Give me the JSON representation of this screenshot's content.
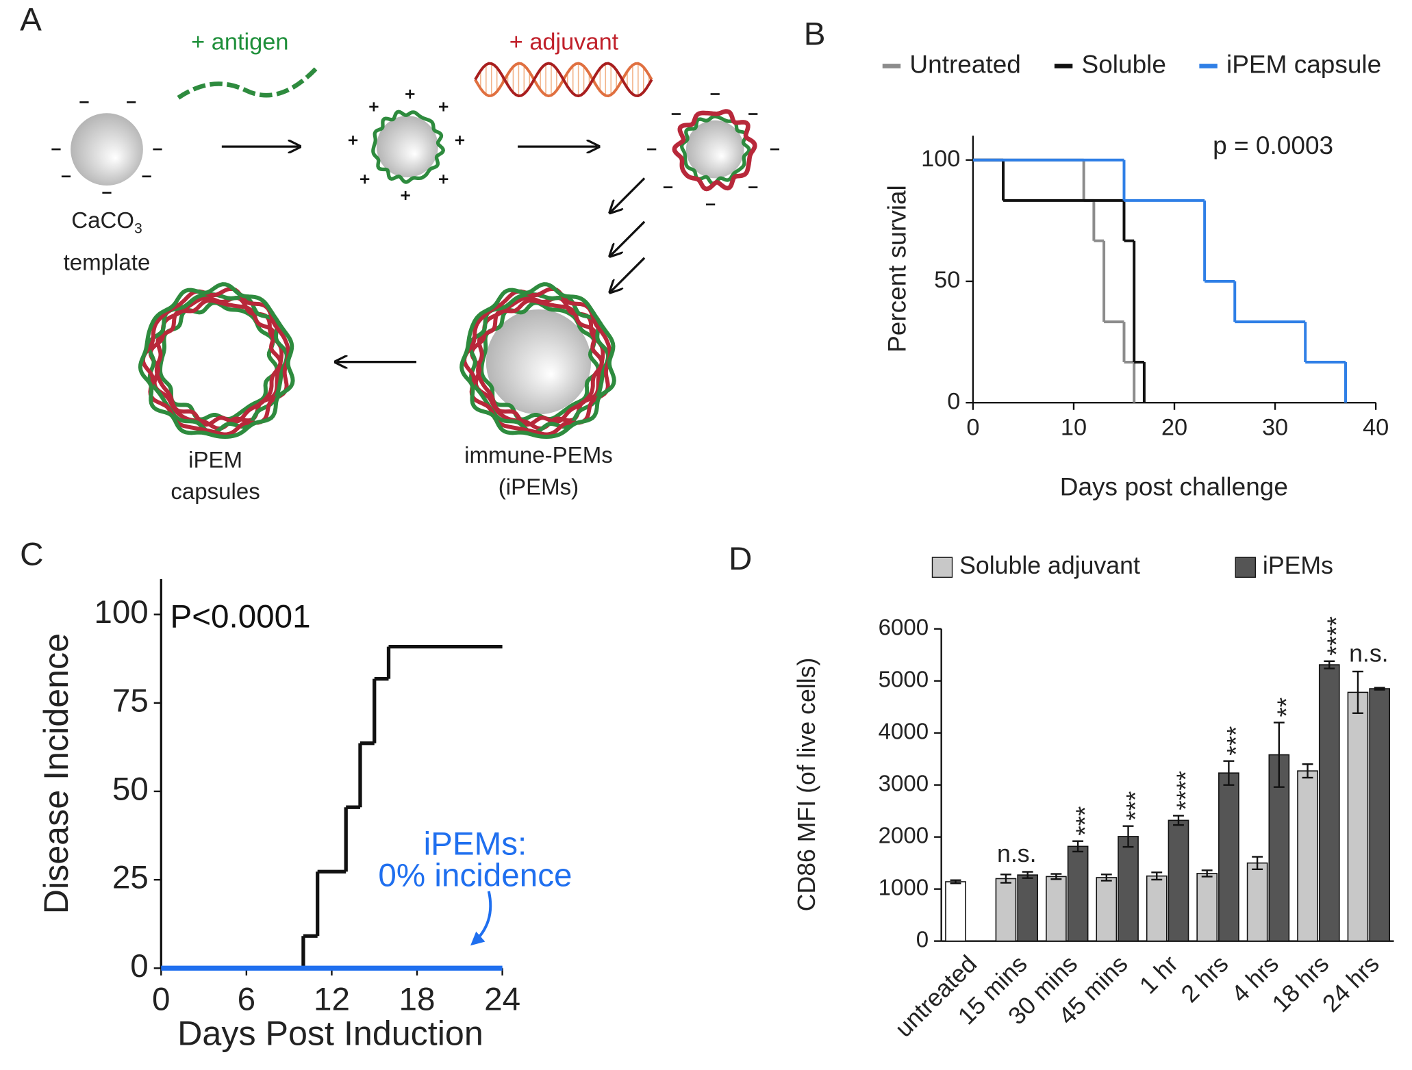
{
  "panel_labels": [
    "A",
    "B",
    "C",
    "D"
  ],
  "diagram": {
    "antigen_label": "+ antigen",
    "adjuvant_label": "+ adjuvant",
    "template_label": [
      "CaCO",
      "3",
      "template"
    ],
    "capsules_label": [
      "iPEM",
      "capsules"
    ],
    "ipems_label": [
      "immune-PEMs",
      "(iPEMs)"
    ]
  },
  "chart_data": [
    {
      "type": "line",
      "step": true,
      "x_label": "Days post challenge",
      "y_label": "Percent survial",
      "annotations": [
        "p = 0.0003"
      ],
      "legend": "top",
      "xlim": [
        0,
        40
      ],
      "xticks": [
        0,
        10,
        20,
        30,
        40
      ],
      "ylim": [
        0,
        110
      ],
      "yticks": [
        0,
        50,
        100
      ],
      "series": [
        {
          "name": "Untreated",
          "color": "#8c8c8c",
          "x": [
            0,
            11,
            12,
            13,
            15,
            16
          ],
          "values": [
            100,
            83.3,
            66.7,
            33.3,
            16.7,
            0
          ]
        },
        {
          "name": "Soluble",
          "color": "#111111",
          "x": [
            0,
            3,
            15,
            16,
            17
          ],
          "values": [
            100,
            83.3,
            66.7,
            16.7,
            0
          ]
        },
        {
          "name": "iPEM capsule",
          "color": "#2f7fe6",
          "x": [
            0,
            15,
            23,
            26,
            33,
            37
          ],
          "values": [
            100,
            83.3,
            50,
            33.3,
            16.7,
            0
          ]
        }
      ]
    },
    {
      "type": "line",
      "step": true,
      "x_label": "Days Post Induction",
      "y_label": "Disease Incidence",
      "annotations": [
        "P<0.0001",
        "iPEMs:",
        "0% incidence"
      ],
      "xlim": [
        0,
        24
      ],
      "xticks": [
        0,
        6,
        12,
        18,
        24
      ],
      "ylim": [
        0,
        110
      ],
      "yticks": [
        0,
        25,
        50,
        75,
        100
      ],
      "series": [
        {
          "color": "#111111",
          "x": [
            0,
            10,
            11,
            13,
            14,
            15,
            16,
            24
          ],
          "values": [
            0,
            9.1,
            27.3,
            45.5,
            63.6,
            81.8,
            90.9,
            90.9
          ]
        },
        {
          "color": "#1f6fef",
          "x": [
            0,
            24
          ],
          "values": [
            0,
            0
          ]
        }
      ]
    },
    {
      "type": "bar",
      "y_label": "CD86 MFI (of live cells)",
      "legend": "top",
      "categories": [
        "untreated",
        "15 mins",
        "30 mins",
        "45 mins",
        "1 hr",
        "2 hrs",
        "4 hrs",
        "18 hrs",
        "24 hrs"
      ],
      "ylim": [
        0,
        6000
      ],
      "yticks": [
        0,
        1000,
        2000,
        3000,
        4000,
        5000,
        6000
      ],
      "significance": [
        null,
        "n.s.",
        "***",
        "***",
        "****",
        "***",
        "**",
        "****",
        "n.s."
      ],
      "series": [
        {
          "color": "#ffffff",
          "values": [
            1140,
            null,
            null,
            null,
            null,
            null,
            null,
            null,
            null
          ],
          "errors": [
            30,
            null,
            null,
            null,
            null,
            null,
            null,
            null,
            null
          ]
        },
        {
          "name": "Soluble adjuvant",
          "color": "#c8c8c8",
          "values": [
            null,
            1200,
            1240,
            1220,
            1250,
            1300,
            1500,
            3270,
            4780
          ],
          "errors": [
            null,
            80,
            50,
            60,
            70,
            60,
            120,
            130,
            400
          ]
        },
        {
          "name": "iPEMs",
          "color": "#555555",
          "values": [
            null,
            1270,
            1820,
            2010,
            2320,
            3230,
            3580,
            5310,
            4850
          ],
          "errors": [
            null,
            60,
            100,
            200,
            90,
            230,
            620,
            70,
            20
          ]
        }
      ]
    }
  ]
}
